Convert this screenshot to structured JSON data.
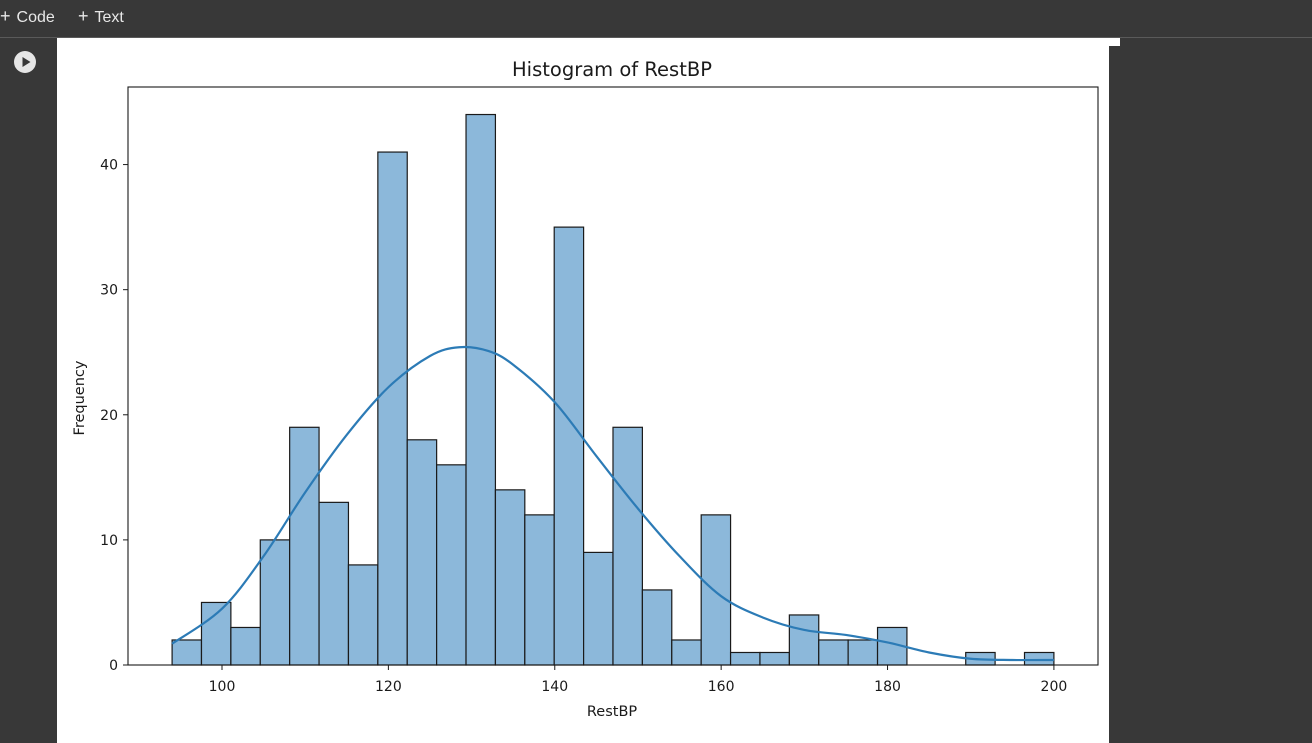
{
  "toolbar": {
    "code_label": "Code",
    "text_label": "Text"
  },
  "chart_data": {
    "type": "bar",
    "title": "Histogram of RestBP",
    "xlabel": "RestBP",
    "ylabel": "Frequency",
    "xlim": [
      88.7,
      205.3
    ],
    "ylim": [
      0,
      46.2
    ],
    "xticks": [
      100,
      120,
      140,
      160,
      180,
      200
    ],
    "yticks": [
      0,
      10,
      20,
      30,
      40
    ],
    "bin_start": 94,
    "bin_width": 3.5333,
    "values": [
      2,
      5,
      3,
      10,
      19,
      13,
      8,
      41,
      18,
      16,
      44,
      14,
      12,
      35,
      9,
      19,
      6,
      2,
      12,
      1,
      1,
      4,
      2,
      2,
      3,
      0,
      0,
      1,
      0,
      1
    ],
    "bar_color": "#8cb8da",
    "edge_color": "#1a1a1a",
    "kde": {
      "color": "#2c7bb6",
      "x": [
        94,
        100,
        105,
        110,
        115,
        120,
        125,
        128.5,
        132,
        135,
        140,
        145,
        150,
        155,
        160,
        165,
        170,
        175,
        180,
        185,
        190,
        195,
        200
      ],
      "y": [
        1.7,
        4.5,
        8.7,
        13.8,
        18.4,
        22.2,
        24.7,
        25.4,
        25.1,
        24.0,
        21.0,
        16.7,
        12.5,
        8.7,
        5.5,
        3.8,
        2.8,
        2.4,
        1.8,
        1.0,
        0.5,
        0.4,
        0.4
      ]
    }
  }
}
